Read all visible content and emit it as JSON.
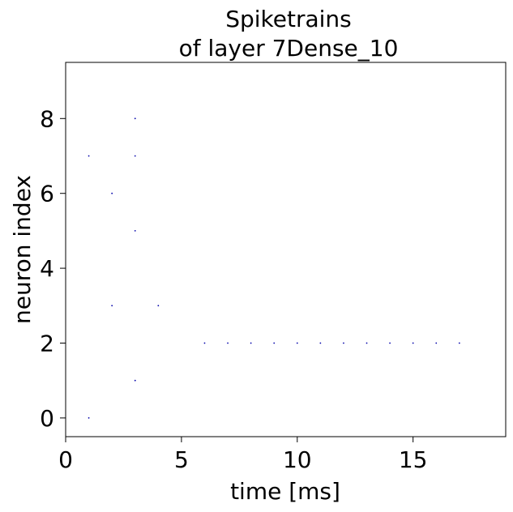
{
  "chart_data": {
    "type": "scatter",
    "title": "Spiketrains\nof layer 7Dense_10",
    "title_lines": [
      "Spiketrains",
      "of layer 7Dense_10"
    ],
    "xlabel": "time [ms]",
    "ylabel": "neuron index",
    "xlim": [
      0,
      19
    ],
    "ylim": [
      -0.5,
      9.5
    ],
    "xticks": [
      0,
      5,
      10,
      15
    ],
    "yticks": [
      0,
      2,
      4,
      6,
      8
    ],
    "xtick_labels": [
      "0",
      "5",
      "10",
      "15"
    ],
    "ytick_labels": [
      "0",
      "2",
      "4",
      "6",
      "8"
    ],
    "grid": false,
    "marker_color": "#0000aa",
    "spikes": [
      {
        "x": 1,
        "y": 0
      },
      {
        "x": 1,
        "y": 7
      },
      {
        "x": 2,
        "y": 3
      },
      {
        "x": 2,
        "y": 6
      },
      {
        "x": 3,
        "y": 1
      },
      {
        "x": 3,
        "y": 5
      },
      {
        "x": 3,
        "y": 7
      },
      {
        "x": 3,
        "y": 8
      },
      {
        "x": 4,
        "y": 3
      },
      {
        "x": 6,
        "y": 2
      },
      {
        "x": 7,
        "y": 2
      },
      {
        "x": 8,
        "y": 2
      },
      {
        "x": 9,
        "y": 2
      },
      {
        "x": 10,
        "y": 2
      },
      {
        "x": 11,
        "y": 2
      },
      {
        "x": 12,
        "y": 2
      },
      {
        "x": 13,
        "y": 2
      },
      {
        "x": 14,
        "y": 2
      },
      {
        "x": 15,
        "y": 2
      },
      {
        "x": 16,
        "y": 2
      },
      {
        "x": 17,
        "y": 2
      }
    ]
  }
}
